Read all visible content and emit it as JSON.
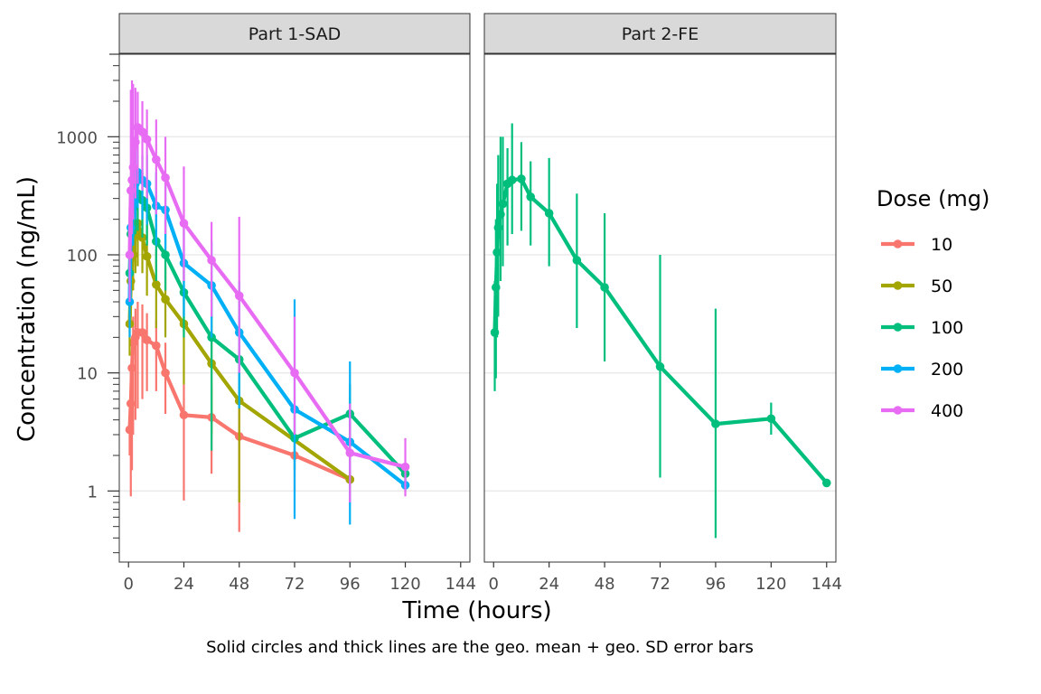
{
  "chart_data": {
    "type": "line",
    "xlabel": "Time (hours)",
    "ylabel": "Concentration (ng/mL)",
    "caption": "Solid circles and thick lines are the geo. mean + geo. SD error bars",
    "legend_title": "Dose (mg)",
    "legend_position": "right",
    "y_scale": "log10",
    "ylim": [
      0.25,
      5000
    ],
    "xlim": [
      -4,
      148
    ],
    "x_ticks": [
      0,
      24,
      48,
      72,
      96,
      120,
      144
    ],
    "y_ticks": [
      1,
      10,
      100,
      1000
    ],
    "y_tick_labels": [
      "1",
      "10",
      "100",
      "1000"
    ],
    "grid": "horizontal major",
    "colors": {
      "10": "#F8766D",
      "50": "#A3A500",
      "100": "#00BF7D",
      "200": "#00B0F6",
      "400": "#E76BF3"
    },
    "panels": [
      {
        "label": "Part 1-SAD",
        "series": [
          {
            "name": "10",
            "points": [
              {
                "x": 0.5,
                "y": 3.3,
                "lo": 2.0,
                "hi": 5.0
              },
              {
                "x": 1,
                "y": 5.5,
                "lo": 0.9,
                "hi": 11
              },
              {
                "x": 1.5,
                "y": 11,
                "lo": 1.5,
                "hi": 20
              },
              {
                "x": 2,
                "y": 18,
                "lo": 3,
                "hi": 30
              },
              {
                "x": 3,
                "y": 20,
                "lo": 4,
                "hi": 35
              },
              {
                "x": 4,
                "y": 22,
                "lo": 5,
                "hi": 40
              },
              {
                "x": 6,
                "y": 22,
                "lo": 6,
                "hi": 38
              },
              {
                "x": 8,
                "y": 19,
                "lo": 7,
                "hi": 32
              },
              {
                "x": 12,
                "y": 17,
                "lo": 7,
                "hi": 28
              },
              {
                "x": 16,
                "y": 10,
                "lo": 4.5,
                "hi": 18
              },
              {
                "x": 24,
                "y": 4.4,
                "lo": 0.83,
                "hi": 8
              },
              {
                "x": 36,
                "y": 4.2,
                "lo": 1.4,
                "hi": 8
              },
              {
                "x": 48,
                "y": 2.9,
                "lo": 0.45,
                "hi": 6
              },
              {
                "x": 72,
                "y": 2.0,
                "lo": 1.0,
                "hi": 3.2
              },
              {
                "x": 96,
                "y": 1.25,
                "lo": 1.1,
                "hi": 1.4
              }
            ]
          },
          {
            "name": "50",
            "points": [
              {
                "x": 0.5,
                "y": 26,
                "lo": 14,
                "hi": 60
              },
              {
                "x": 1,
                "y": 60,
                "lo": 30,
                "hi": 110
              },
              {
                "x": 2,
                "y": 100,
                "lo": 50,
                "hi": 200
              },
              {
                "x": 3,
                "y": 150,
                "lo": 70,
                "hi": 250
              },
              {
                "x": 4,
                "y": 185,
                "lo": 80,
                "hi": 300
              },
              {
                "x": 6,
                "y": 140,
                "lo": 70,
                "hi": 260
              },
              {
                "x": 8,
                "y": 97,
                "lo": 45,
                "hi": 190
              },
              {
                "x": 12,
                "y": 56,
                "lo": 24,
                "hi": 110
              },
              {
                "x": 16,
                "y": 42,
                "lo": 20,
                "hi": 80
              },
              {
                "x": 24,
                "y": 26,
                "lo": 8,
                "hi": 55
              },
              {
                "x": 36,
                "y": 12,
                "lo": 3,
                "hi": 30
              },
              {
                "x": 48,
                "y": 5.8,
                "lo": 0.8,
                "hi": 15
              },
              {
                "x": 96,
                "y": 1.25,
                "lo": 1.1,
                "hi": 1.4
              }
            ]
          },
          {
            "name": "100",
            "points": [
              {
                "x": 0.5,
                "y": 70,
                "lo": 30,
                "hi": 130
              },
              {
                "x": 1,
                "y": 150,
                "lo": 70,
                "hi": 260
              },
              {
                "x": 2,
                "y": 250,
                "lo": 120,
                "hi": 450
              },
              {
                "x": 3,
                "y": 300,
                "lo": 150,
                "hi": 500
              },
              {
                "x": 4,
                "y": 330,
                "lo": 160,
                "hi": 560
              },
              {
                "x": 6,
                "y": 290,
                "lo": 140,
                "hi": 500
              },
              {
                "x": 8,
                "y": 250,
                "lo": 120,
                "hi": 450
              },
              {
                "x": 12,
                "y": 130,
                "lo": 60,
                "hi": 260
              },
              {
                "x": 16,
                "y": 100,
                "lo": 50,
                "hi": 200
              },
              {
                "x": 24,
                "y": 48,
                "lo": 20,
                "hi": 100
              },
              {
                "x": 36,
                "y": 20,
                "lo": 2.2,
                "hi": 60
              },
              {
                "x": 48,
                "y": 13,
                "lo": 5,
                "hi": 30
              },
              {
                "x": 72,
                "y": 2.8,
                "lo": 1.5,
                "hi": 5
              },
              {
                "x": 96,
                "y": 4.5,
                "lo": 2.5,
                "hi": 8
              },
              {
                "x": 120,
                "y": 1.4,
                "lo": 1.2,
                "hi": 1.6
              }
            ]
          },
          {
            "name": "200",
            "points": [
              {
                "x": 0.5,
                "y": 40,
                "lo": 20,
                "hi": 90
              },
              {
                "x": 1,
                "y": 170,
                "lo": 60,
                "hi": 350
              },
              {
                "x": 2,
                "y": 280,
                "lo": 120,
                "hi": 550
              },
              {
                "x": 3,
                "y": 400,
                "lo": 200,
                "hi": 700
              },
              {
                "x": 4,
                "y": 500,
                "lo": 250,
                "hi": 800
              },
              {
                "x": 6,
                "y": 430,
                "lo": 200,
                "hi": 700
              },
              {
                "x": 8,
                "y": 400,
                "lo": 180,
                "hi": 700
              },
              {
                "x": 12,
                "y": 260,
                "lo": 120,
                "hi": 500
              },
              {
                "x": 16,
                "y": 240,
                "lo": 110,
                "hi": 450
              },
              {
                "x": 24,
                "y": 85,
                "lo": 30,
                "hi": 200
              },
              {
                "x": 36,
                "y": 55,
                "lo": 20,
                "hi": 130
              },
              {
                "x": 48,
                "y": 22,
                "lo": 5,
                "hi": 60
              },
              {
                "x": 72,
                "y": 4.9,
                "lo": 0.58,
                "hi": 42
              },
              {
                "x": 96,
                "y": 2.6,
                "lo": 0.52,
                "hi": 12.5
              },
              {
                "x": 120,
                "y": 1.12,
                "lo": 1.0,
                "hi": 1.3
              }
            ]
          },
          {
            "name": "400",
            "points": [
              {
                "x": 0.5,
                "y": 100,
                "lo": 40,
                "hi": 250
              },
              {
                "x": 1,
                "y": 350,
                "lo": 120,
                "hi": 2500
              },
              {
                "x": 1.5,
                "y": 430,
                "lo": 150,
                "hi": 3000
              },
              {
                "x": 2,
                "y": 550,
                "lo": 200,
                "hi": 2800
              },
              {
                "x": 3,
                "y": 900,
                "lo": 300,
                "hi": 2600
              },
              {
                "x": 4,
                "y": 1200,
                "lo": 400,
                "hi": 2400
              },
              {
                "x": 6,
                "y": 1100,
                "lo": 350,
                "hi": 2000
              },
              {
                "x": 8,
                "y": 950,
                "lo": 300,
                "hi": 1700
              },
              {
                "x": 12,
                "y": 640,
                "lo": 220,
                "hi": 1400
              },
              {
                "x": 16,
                "y": 450,
                "lo": 150,
                "hi": 1000
              },
              {
                "x": 24,
                "y": 185,
                "lo": 60,
                "hi": 560
              },
              {
                "x": 36,
                "y": 90,
                "lo": 30,
                "hi": 190
              },
              {
                "x": 48,
                "y": 45,
                "lo": 10,
                "hi": 210
              },
              {
                "x": 72,
                "y": 10,
                "lo": 3,
                "hi": 30
              },
              {
                "x": 96,
                "y": 2.1,
                "lo": 0.8,
                "hi": 5.5
              },
              {
                "x": 120,
                "y": 1.6,
                "lo": 0.9,
                "hi": 2.8
              }
            ]
          }
        ]
      },
      {
        "label": "Part 2-FE",
        "series": [
          {
            "name": "100",
            "points": [
              {
                "x": 0.5,
                "y": 22,
                "lo": 7,
                "hi": 60
              },
              {
                "x": 1,
                "y": 53,
                "lo": 9,
                "hi": 200
              },
              {
                "x": 1.5,
                "y": 105,
                "lo": 20,
                "hi": 400
              },
              {
                "x": 2,
                "y": 170,
                "lo": 30,
                "hi": 700
              },
              {
                "x": 3,
                "y": 220,
                "lo": 60,
                "hi": 1000
              },
              {
                "x": 4,
                "y": 270,
                "lo": 80,
                "hi": 1000
              },
              {
                "x": 6,
                "y": 400,
                "lo": 120,
                "hi": 800
              },
              {
                "x": 8,
                "y": 430,
                "lo": 150,
                "hi": 1300
              },
              {
                "x": 12,
                "y": 440,
                "lo": 160,
                "hi": 900
              },
              {
                "x": 16,
                "y": 310,
                "lo": 120,
                "hi": 620
              },
              {
                "x": 24,
                "y": 225,
                "lo": 80,
                "hi": 660
              },
              {
                "x": 36,
                "y": 90,
                "lo": 24,
                "hi": 330
              },
              {
                "x": 48,
                "y": 53,
                "lo": 12.5,
                "hi": 225
              },
              {
                "x": 72,
                "y": 11.3,
                "lo": 1.3,
                "hi": 100
              },
              {
                "x": 96,
                "y": 3.7,
                "lo": 0.4,
                "hi": 35
              },
              {
                "x": 120,
                "y": 4.1,
                "lo": 3.0,
                "hi": 5.6
              },
              {
                "x": 144,
                "y": 1.17,
                "lo": 1.1,
                "hi": 1.25
              }
            ]
          }
        ]
      }
    ]
  }
}
